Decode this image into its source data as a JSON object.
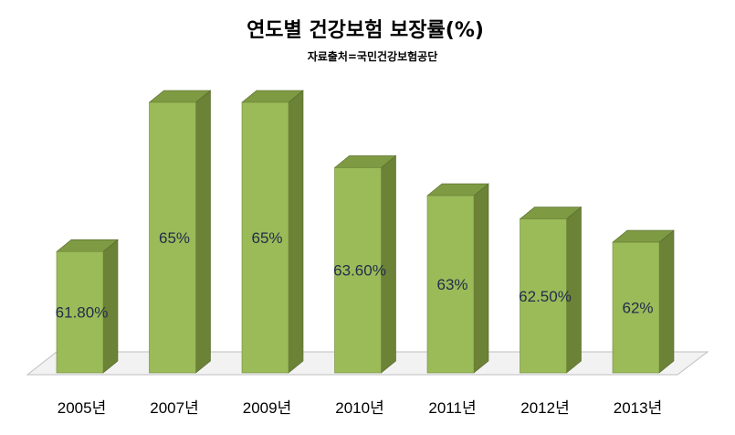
{
  "chart_data": {
    "type": "bar",
    "title": "연도별 건강보험 보장률(%)",
    "subtitle": "자료출처=국민건강보험공단",
    "categories": [
      "2005년",
      "2007년",
      "2009년",
      "2010년",
      "2011년",
      "2012년",
      "2013년"
    ],
    "values": [
      61.8,
      65,
      65,
      63.6,
      63,
      62.5,
      62
    ],
    "data_labels": [
      "61.80%",
      "65%",
      "65%",
      "63.60%",
      "63%",
      "62.50%",
      "62%"
    ],
    "ylim": [
      59.2,
      65
    ],
    "grid": false,
    "legend": "none",
    "colors": {
      "front": "#9bbb59",
      "side": "#6b8237",
      "top": "#7e9a43",
      "floor": "#f2f2f2",
      "floor_stroke": "#bfbfbf"
    }
  }
}
